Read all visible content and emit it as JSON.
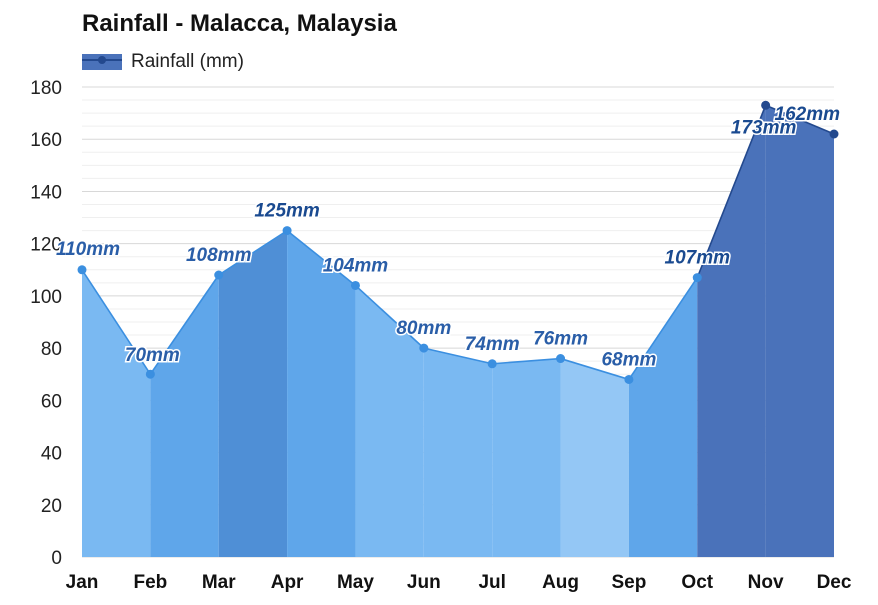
{
  "chart_data": {
    "type": "area",
    "title": "Rainfall - Malacca, Malaysia",
    "categories": [
      "Jan",
      "Feb",
      "Mar",
      "Apr",
      "May",
      "Jun",
      "Jul",
      "Aug",
      "Sep",
      "Oct",
      "Nov",
      "Dec"
    ],
    "series": [
      {
        "name": "Rainfall (mm)",
        "values": [
          110,
          70,
          108,
          125,
          104,
          80,
          74,
          76,
          68,
          107,
          173,
          162
        ],
        "labels": [
          "110mm",
          "70mm",
          "108mm",
          "125mm",
          "104mm",
          "80mm",
          "74mm",
          "76mm",
          "68mm",
          "107mm",
          "173mm",
          "162mm"
        ]
      }
    ],
    "segment_fill_colors": [
      "#7ab9f2",
      "#5fa6ea",
      "#4f8fd6",
      "#5fa6ea",
      "#7ab9f2",
      "#7ab9f2",
      "#7ab9f2",
      "#94c7f5",
      "#5fa6ea",
      "#4a72ba",
      "#4a72ba",
      "#4a72ba"
    ],
    "label_colors": [
      "#2a5ea8",
      "#2a5ea8",
      "#2a5ea8",
      "#1a4a90",
      "#2a5ea8",
      "#2a5ea8",
      "#2a5ea8",
      "#2a5ea8",
      "#2a5ea8",
      "#1a4a90",
      "#1a4a90",
      "#1a4a90"
    ],
    "line_color": "#3b8fe0",
    "dark_line_color": "#23498e",
    "ylim": [
      0,
      180
    ],
    "yticks": [
      "0",
      "20",
      "40",
      "60",
      "80",
      "100",
      "120",
      "140",
      "160",
      "180"
    ],
    "grid": true,
    "legend_position": "top-left",
    "legend_color": "#4a72ba"
  }
}
